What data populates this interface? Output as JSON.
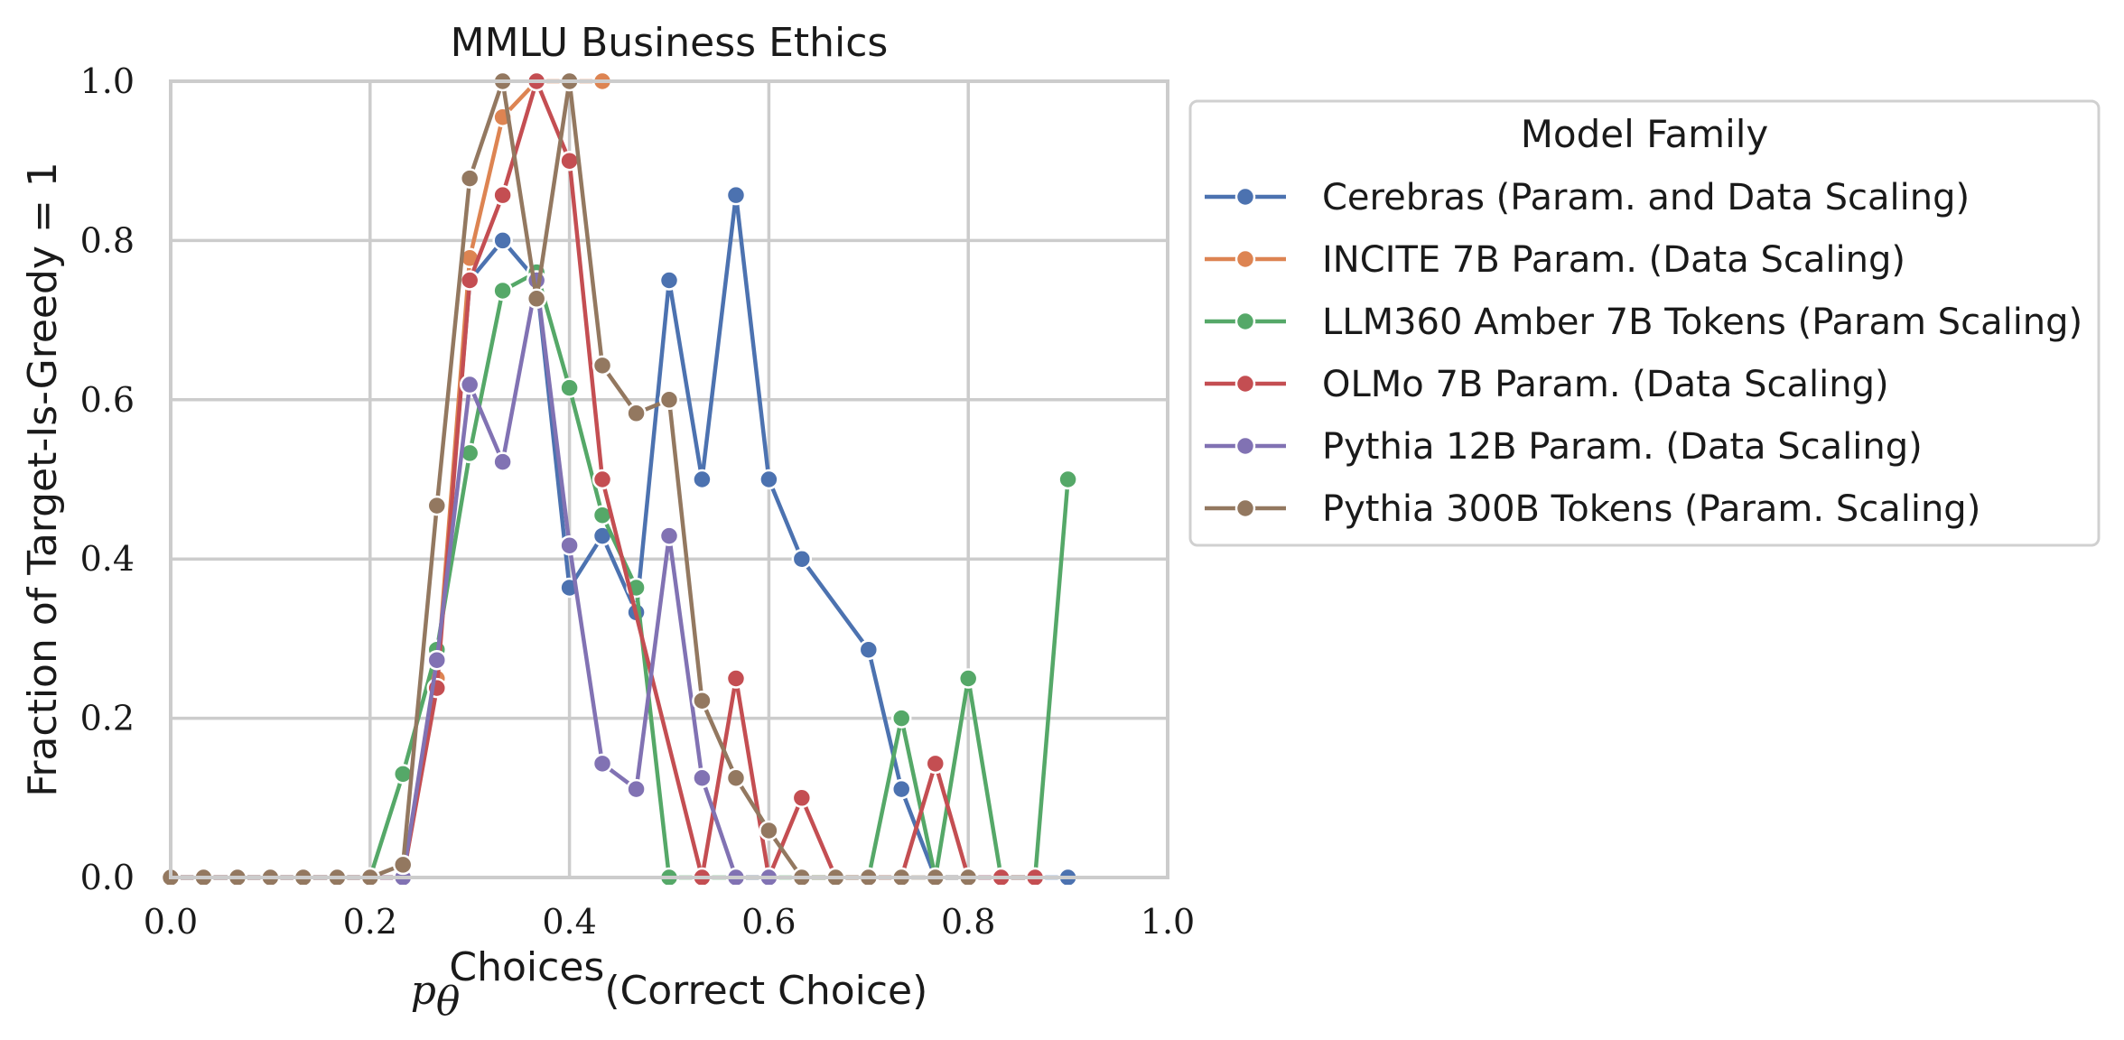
{
  "chart_data": {
    "type": "line",
    "title": "MMLU Business Ethics",
    "xlabel_symbol": "p",
    "xlabel_subscript": "θ",
    "xlabel_superscript": "Choices",
    "xlabel_text": "(Correct Choice)",
    "ylabel": "Fraction of Target-Is-Greedy = 1",
    "xlim": [
      0.0,
      1.0
    ],
    "ylim": [
      0.0,
      1.0
    ],
    "xticks": [
      "0.0",
      "0.2",
      "0.4",
      "0.6",
      "0.8",
      "1.0"
    ],
    "yticks": [
      "0.0",
      "0.2",
      "0.4",
      "0.6",
      "0.8",
      "1.0"
    ],
    "grid": true,
    "legend": {
      "title": "Model Family",
      "placement": "outside-right-top"
    },
    "series": [
      {
        "name": "Cerebras (Param. and Data Scaling)",
        "color": "#4c72b0",
        "points": [
          [
            0.0,
            0.0
          ],
          [
            0.033,
            0.0
          ],
          [
            0.067,
            0.0
          ],
          [
            0.1,
            0.0
          ],
          [
            0.133,
            0.0
          ],
          [
            0.167,
            0.0
          ],
          [
            0.2,
            0.0
          ],
          [
            0.233,
            0.0
          ],
          [
            0.267,
            0.25
          ],
          [
            0.3,
            0.75
          ],
          [
            0.333,
            0.8
          ],
          [
            0.367,
            0.75
          ],
          [
            0.4,
            0.364
          ],
          [
            0.433,
            0.429
          ],
          [
            0.467,
            0.333
          ],
          [
            0.5,
            0.75
          ],
          [
            0.533,
            0.5
          ],
          [
            0.567,
            0.857
          ],
          [
            0.6,
            0.5
          ],
          [
            0.633,
            0.4
          ],
          [
            0.7,
            0.286
          ],
          [
            0.733,
            0.111
          ],
          [
            0.767,
            0.0
          ],
          [
            0.9,
            0.0
          ]
        ]
      },
      {
        "name": "INCITE 7B Param. (Data Scaling)",
        "color": "#dd8452",
        "points": [
          [
            0.0,
            0.0
          ],
          [
            0.033,
            0.0
          ],
          [
            0.067,
            0.0
          ],
          [
            0.1,
            0.0
          ],
          [
            0.133,
            0.0
          ],
          [
            0.167,
            0.0
          ],
          [
            0.2,
            0.0
          ],
          [
            0.233,
            0.0
          ],
          [
            0.267,
            0.25
          ],
          [
            0.3,
            0.778
          ],
          [
            0.333,
            0.955
          ],
          [
            0.367,
            1.0
          ],
          [
            0.4,
            1.0
          ],
          [
            0.433,
            1.0
          ]
        ]
      },
      {
        "name": "LLM360 Amber 7B Tokens (Param Scaling)",
        "color": "#55a868",
        "points": [
          [
            0.0,
            0.0
          ],
          [
            0.2,
            0.0
          ],
          [
            0.233,
            0.13
          ],
          [
            0.267,
            0.286
          ],
          [
            0.3,
            0.533
          ],
          [
            0.333,
            0.737
          ],
          [
            0.367,
            0.76
          ],
          [
            0.4,
            0.615
          ],
          [
            0.433,
            0.455
          ],
          [
            0.467,
            0.364
          ],
          [
            0.5,
            0.0
          ],
          [
            0.533,
            0.0
          ],
          [
            0.567,
            0.0
          ],
          [
            0.6,
            0.0
          ],
          [
            0.633,
            0.0
          ],
          [
            0.667,
            0.0
          ],
          [
            0.7,
            0.0
          ],
          [
            0.733,
            0.2
          ],
          [
            0.767,
            0.0
          ],
          [
            0.8,
            0.25
          ],
          [
            0.833,
            0.0
          ],
          [
            0.867,
            0.0
          ],
          [
            0.9,
            0.5
          ]
        ]
      },
      {
        "name": "OLMo 7B Param. (Data Scaling)",
        "color": "#c44e52",
        "points": [
          [
            0.0,
            0.0
          ],
          [
            0.2,
            0.0
          ],
          [
            0.233,
            0.0
          ],
          [
            0.267,
            0.238
          ],
          [
            0.3,
            0.75
          ],
          [
            0.333,
            0.857
          ],
          [
            0.367,
            1.0
          ],
          [
            0.4,
            0.9
          ],
          [
            0.433,
            0.5
          ],
          [
            0.533,
            0.0
          ],
          [
            0.567,
            0.25
          ],
          [
            0.6,
            0.0
          ],
          [
            0.633,
            0.1
          ],
          [
            0.667,
            0.0
          ],
          [
            0.7,
            0.0
          ],
          [
            0.733,
            0.0
          ],
          [
            0.767,
            0.143
          ],
          [
            0.8,
            0.0
          ],
          [
            0.833,
            0.0
          ],
          [
            0.867,
            0.0
          ]
        ]
      },
      {
        "name": "Pythia 12B Param. (Data Scaling)",
        "color": "#8172b3",
        "points": [
          [
            0.0,
            0.0
          ],
          [
            0.2,
            0.0
          ],
          [
            0.233,
            0.0
          ],
          [
            0.267,
            0.273
          ],
          [
            0.3,
            0.619
          ],
          [
            0.333,
            0.522
          ],
          [
            0.367,
            0.75
          ],
          [
            0.4,
            0.417
          ],
          [
            0.433,
            0.143
          ],
          [
            0.467,
            0.111
          ],
          [
            0.5,
            0.429
          ],
          [
            0.533,
            0.125
          ],
          [
            0.567,
            0.0
          ],
          [
            0.6,
            0.0
          ]
        ]
      },
      {
        "name": "Pythia 300B Tokens (Param. Scaling)",
        "color": "#937860",
        "points": [
          [
            0.0,
            0.0
          ],
          [
            0.033,
            0.0
          ],
          [
            0.067,
            0.0
          ],
          [
            0.1,
            0.0
          ],
          [
            0.133,
            0.0
          ],
          [
            0.167,
            0.0
          ],
          [
            0.2,
            0.0
          ],
          [
            0.233,
            0.016
          ],
          [
            0.267,
            0.467
          ],
          [
            0.3,
            0.878
          ],
          [
            0.333,
            1.0
          ],
          [
            0.367,
            0.727
          ],
          [
            0.4,
            1.0
          ],
          [
            0.433,
            0.643
          ],
          [
            0.467,
            0.583
          ],
          [
            0.5,
            0.6
          ],
          [
            0.533,
            0.222
          ],
          [
            0.567,
            0.125
          ],
          [
            0.6,
            0.059
          ],
          [
            0.633,
            0.0
          ],
          [
            0.667,
            0.0
          ],
          [
            0.7,
            0.0
          ],
          [
            0.733,
            0.0
          ],
          [
            0.767,
            0.0
          ],
          [
            0.8,
            0.0
          ]
        ]
      }
    ]
  }
}
